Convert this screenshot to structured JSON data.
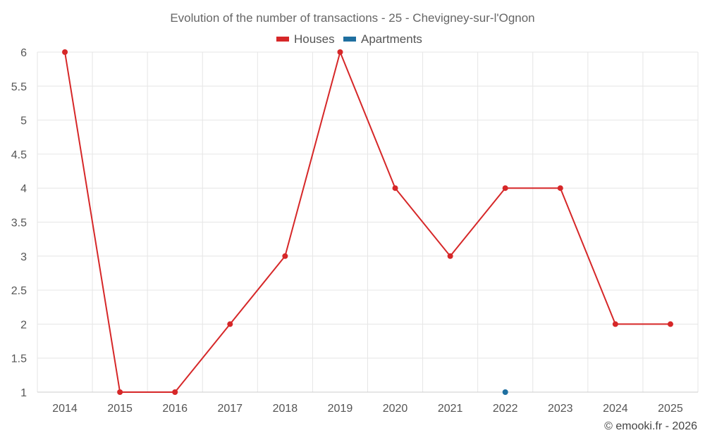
{
  "chart_data": {
    "type": "line",
    "title": "Evolution of the number of transactions - 25 - Chevigney-sur-l'Ognon",
    "categories": [
      "2014",
      "2015",
      "2016",
      "2017",
      "2018",
      "2019",
      "2020",
      "2021",
      "2022",
      "2023",
      "2024",
      "2025"
    ],
    "series": [
      {
        "name": "Houses",
        "color": "#d62728",
        "values": [
          6,
          1,
          1,
          2,
          3,
          6,
          4,
          3,
          4,
          4,
          2,
          2
        ]
      },
      {
        "name": "Apartments",
        "color": "#1f6fa0",
        "values": [
          null,
          null,
          null,
          null,
          null,
          null,
          null,
          null,
          1,
          null,
          null,
          null
        ]
      }
    ],
    "yticks": [
      "1",
      "1.5",
      "2",
      "2.5",
      "3",
      "3.5",
      "4",
      "4.5",
      "5",
      "5.5",
      "6"
    ],
    "ylim": [
      1,
      6
    ],
    "xlabel": "",
    "ylabel": "",
    "grid": true,
    "legend_position": "top-center"
  },
  "credit": "© emooki.fr - 2026"
}
